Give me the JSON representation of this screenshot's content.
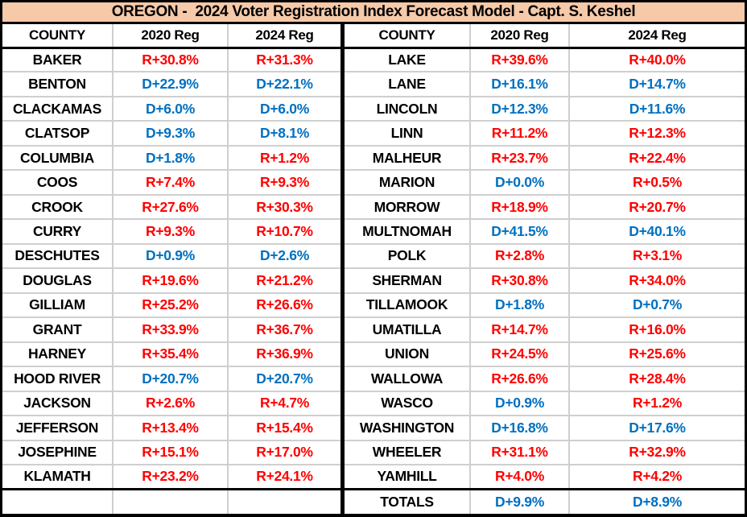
{
  "title": "OREGON -  2024 Voter Registration Index Forecast Model - Capt. S. Keshel",
  "colors": {
    "republican_text": "#FF0000",
    "democrat_text": "#0070C0",
    "title_background": "#F6C9A8",
    "grid_line": "#CFCFCF",
    "border": "#000000"
  },
  "columns": [
    "COUNTY",
    "2020 Reg",
    "2024 Reg"
  ],
  "left_table": {
    "rows": [
      [
        "BAKER",
        "R+30.8%",
        "R+31.3%"
      ],
      [
        "BENTON",
        "D+22.9%",
        "D+22.1%"
      ],
      [
        "CLACKAMAS",
        "D+6.0%",
        "D+6.0%"
      ],
      [
        "CLATSOP",
        "D+9.3%",
        "D+8.1%"
      ],
      [
        "COLUMBIA",
        "D+1.8%",
        "R+1.2%"
      ],
      [
        "COOS",
        "R+7.4%",
        "R+9.3%"
      ],
      [
        "CROOK",
        "R+27.6%",
        "R+30.3%"
      ],
      [
        "CURRY",
        "R+9.3%",
        "R+10.7%"
      ],
      [
        "DESCHUTES",
        "D+0.9%",
        "D+2.6%"
      ],
      [
        "DOUGLAS",
        "R+19.6%",
        "R+21.2%"
      ],
      [
        "GILLIAM",
        "R+25.2%",
        "R+26.6%"
      ],
      [
        "GRANT",
        "R+33.9%",
        "R+36.7%"
      ],
      [
        "HARNEY",
        "R+35.4%",
        "R+36.9%"
      ],
      [
        "HOOD RIVER",
        "D+20.7%",
        "D+20.7%"
      ],
      [
        "JACKSON",
        "R+2.6%",
        "R+4.7%"
      ],
      [
        "JEFFERSON",
        "R+13.4%",
        "R+15.4%"
      ],
      [
        "JOSEPHINE",
        "R+15.1%",
        "R+17.0%"
      ],
      [
        "KLAMATH",
        "R+23.2%",
        "R+24.1%"
      ]
    ],
    "footer": [
      "",
      "",
      ""
    ]
  },
  "right_table": {
    "rows": [
      [
        "LAKE",
        "R+39.6%",
        "R+40.0%"
      ],
      [
        "LANE",
        "D+16.1%",
        "D+14.7%"
      ],
      [
        "LINCOLN",
        "D+12.3%",
        "D+11.6%"
      ],
      [
        "LINN",
        "R+11.2%",
        "R+12.3%"
      ],
      [
        "MALHEUR",
        "R+23.7%",
        "R+22.4%"
      ],
      [
        "MARION",
        "D+0.0%",
        "R+0.5%"
      ],
      [
        "MORROW",
        "R+18.9%",
        "R+20.7%"
      ],
      [
        "MULTNOMAH",
        "D+41.5%",
        "D+40.1%"
      ],
      [
        "POLK",
        "R+2.8%",
        "R+3.1%"
      ],
      [
        "SHERMAN",
        "R+30.8%",
        "R+34.0%"
      ],
      [
        "TILLAMOOK",
        "D+1.8%",
        "D+0.7%"
      ],
      [
        "UMATILLA",
        "R+14.7%",
        "R+16.0%"
      ],
      [
        "UNION",
        "R+24.5%",
        "R+25.6%"
      ],
      [
        "WALLOWA",
        "R+26.6%",
        "R+28.4%"
      ],
      [
        "WASCO",
        "D+0.9%",
        "R+1.2%"
      ],
      [
        "WASHINGTON",
        "D+16.8%",
        "D+17.6%"
      ],
      [
        "WHEELER",
        "R+31.1%",
        "R+32.9%"
      ],
      [
        "YAMHILL",
        "R+4.0%",
        "R+4.2%"
      ]
    ],
    "footer": [
      "TOTALS",
      "D+9.9%",
      "D+8.9%"
    ]
  },
  "chart_data": {
    "type": "table",
    "title": "OREGON -  2024 Voter Registration Index Forecast Model - Capt. S. Keshel",
    "columns": [
      "COUNTY",
      "2020 Reg",
      "2024 Reg"
    ],
    "rows": [
      [
        "BAKER",
        "R+30.8%",
        "R+31.3%"
      ],
      [
        "BENTON",
        "D+22.9%",
        "D+22.1%"
      ],
      [
        "CLACKAMAS",
        "D+6.0%",
        "D+6.0%"
      ],
      [
        "CLATSOP",
        "D+9.3%",
        "D+8.1%"
      ],
      [
        "COLUMBIA",
        "D+1.8%",
        "R+1.2%"
      ],
      [
        "COOS",
        "R+7.4%",
        "R+9.3%"
      ],
      [
        "CROOK",
        "R+27.6%",
        "R+30.3%"
      ],
      [
        "CURRY",
        "R+9.3%",
        "R+10.7%"
      ],
      [
        "DESCHUTES",
        "D+0.9%",
        "D+2.6%"
      ],
      [
        "DOUGLAS",
        "R+19.6%",
        "R+21.2%"
      ],
      [
        "GILLIAM",
        "R+25.2%",
        "R+26.6%"
      ],
      [
        "GRANT",
        "R+33.9%",
        "R+36.7%"
      ],
      [
        "HARNEY",
        "R+35.4%",
        "R+36.9%"
      ],
      [
        "HOOD RIVER",
        "D+20.7%",
        "D+20.7%"
      ],
      [
        "JACKSON",
        "R+2.6%",
        "R+4.7%"
      ],
      [
        "JEFFERSON",
        "R+13.4%",
        "R+15.4%"
      ],
      [
        "JOSEPHINE",
        "R+15.1%",
        "R+17.0%"
      ],
      [
        "KLAMATH",
        "R+23.2%",
        "R+24.1%"
      ],
      [
        "LAKE",
        "R+39.6%",
        "R+40.0%"
      ],
      [
        "LANE",
        "D+16.1%",
        "D+14.7%"
      ],
      [
        "LINCOLN",
        "D+12.3%",
        "D+11.6%"
      ],
      [
        "LINN",
        "R+11.2%",
        "R+12.3%"
      ],
      [
        "MALHEUR",
        "R+23.7%",
        "R+22.4%"
      ],
      [
        "MARION",
        "D+0.0%",
        "R+0.5%"
      ],
      [
        "MORROW",
        "R+18.9%",
        "R+20.7%"
      ],
      [
        "MULTNOMAH",
        "D+41.5%",
        "D+40.1%"
      ],
      [
        "POLK",
        "R+2.8%",
        "R+3.1%"
      ],
      [
        "SHERMAN",
        "R+30.8%",
        "R+34.0%"
      ],
      [
        "TILLAMOOK",
        "D+1.8%",
        "D+0.7%"
      ],
      [
        "UMATILLA",
        "R+14.7%",
        "R+16.0%"
      ],
      [
        "UNION",
        "R+24.5%",
        "R+25.6%"
      ],
      [
        "WALLOWA",
        "R+26.6%",
        "R+28.4%"
      ],
      [
        "WASCO",
        "D+0.9%",
        "R+1.2%"
      ],
      [
        "WASHINGTON",
        "D+16.8%",
        "D+17.6%"
      ],
      [
        "WHEELER",
        "R+31.1%",
        "R+32.9%"
      ],
      [
        "YAMHILL",
        "R+4.0%",
        "R+4.2%"
      ],
      [
        "TOTALS",
        "D+9.9%",
        "D+8.9%"
      ]
    ],
    "value_color_rule": "values beginning with D are rendered blue (#0070C0), values beginning with R are rendered red (#FF0000)"
  }
}
